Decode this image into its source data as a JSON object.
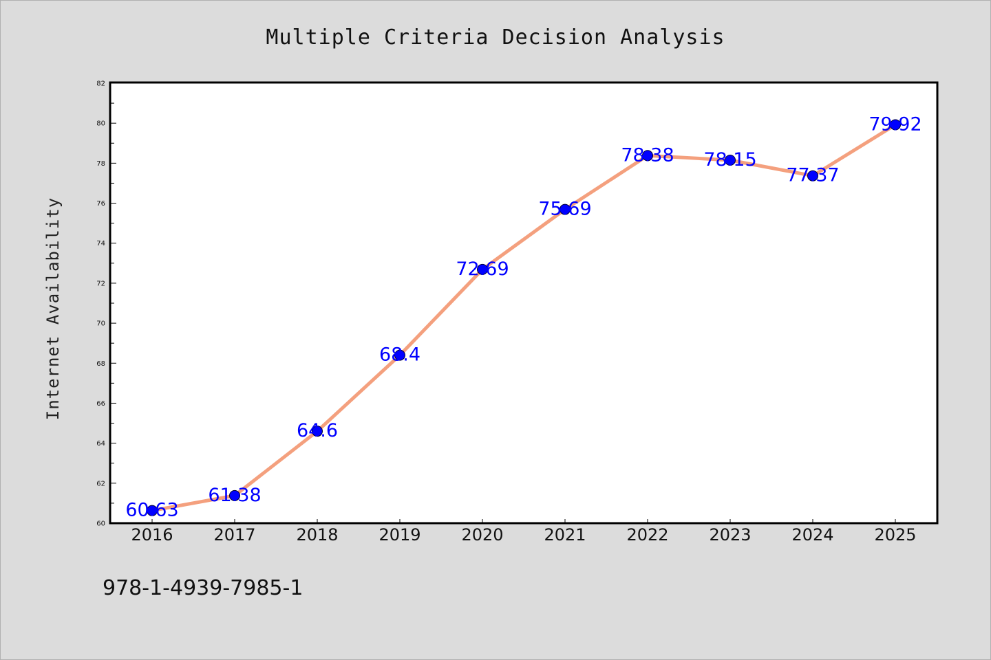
{
  "chart_data": {
    "type": "line",
    "title": "Multiple Criteria Decision Analysis",
    "xlabel": "",
    "ylabel": "Internet Availability",
    "x": [
      "2016",
      "2017",
      "2018",
      "2019",
      "2020",
      "2021",
      "2022",
      "2023",
      "2024",
      "2025"
    ],
    "series": [
      {
        "values": [
          60.63,
          61.38,
          64.6,
          68.4,
          72.69,
          75.69,
          78.38,
          78.15,
          77.37,
          79.92
        ],
        "data_labels": [
          "60.63",
          "61.38",
          "64.6",
          "68.4",
          "72.69",
          "75.69",
          "78.38",
          "78.15",
          "77.37",
          "79.92"
        ]
      }
    ],
    "ylim": [
      60,
      82
    ],
    "y_ticks": [
      "60",
      "62",
      "64",
      "66",
      "68",
      "70",
      "72",
      "74",
      "76",
      "78",
      "80",
      "82"
    ],
    "grid": false,
    "colors": {
      "line": "#f4a07e",
      "marker": "#0000ff",
      "data_label": "#0000ff",
      "background": "#dcdcdc",
      "plot_background": "#ffffff"
    }
  },
  "footer_text": "978-1-4939-7985-1"
}
